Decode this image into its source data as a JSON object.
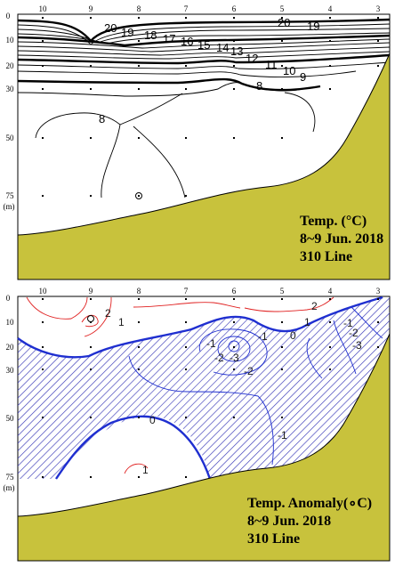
{
  "colors": {
    "seabed": "#c8c23c",
    "cold": "#1f2fd0",
    "warm": "#e02020",
    "hatch": "#3a3ab8"
  },
  "stations": [
    "10",
    "9",
    "8",
    "7",
    "6",
    "5",
    "4",
    "3"
  ],
  "depths": [
    "0",
    "10",
    "20",
    "30",
    "50",
    "75"
  ],
  "depth_unit": "(m)",
  "panel_temp": {
    "title_line1": "Temp. (°C)",
    "title_line2": "8~9 Jun. 2018",
    "title_line3": "310 Line",
    "contour_labels": [
      "20",
      "19",
      "18",
      "17",
      "16",
      "15",
      "14",
      "13",
      "12",
      "11",
      "10",
      "9",
      "8",
      "20",
      "19",
      "8"
    ]
  },
  "panel_anom": {
    "title_line1": "Temp. Anomaly(∘C)",
    "title_line2": "8~9 Jun. 2018",
    "title_line3": "310 Line",
    "contour_labels": [
      "2",
      "1",
      "2",
      "1",
      "-1",
      "0",
      "-1",
      "-2",
      "-3",
      "-2",
      "-3",
      "-1",
      "-2",
      "0",
      "-1",
      "1"
    ]
  }
}
